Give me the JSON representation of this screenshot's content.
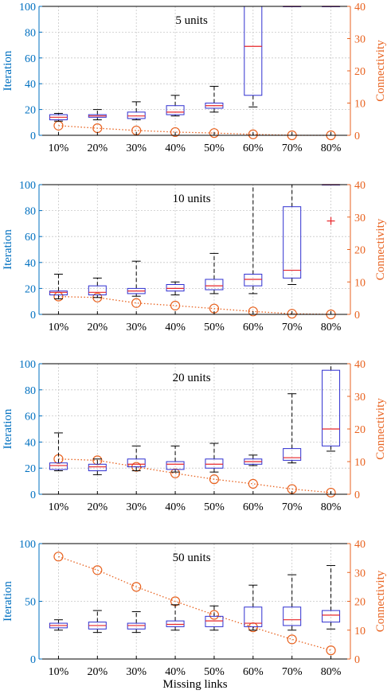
{
  "figure": {
    "xlabel": "Missing links"
  },
  "chart_data": [
    {
      "type": "box",
      "title": "5 units",
      "ylabel_left": "Iteration",
      "ylabel_right": "Connectivity",
      "categories": [
        "10%",
        "20%",
        "30%",
        "40%",
        "50%",
        "60%",
        "70%",
        "80%"
      ],
      "ylim_left": [
        0,
        100
      ],
      "yticks_left": [
        0,
        20,
        40,
        60,
        80,
        100
      ],
      "ylim_right": [
        0,
        40
      ],
      "yticks_right": [
        0,
        10,
        20,
        30,
        40
      ],
      "grid": true,
      "boxes": [
        {
          "whislo": 11,
          "q1": 12,
          "med": 14,
          "q3": 16,
          "whishi": 17
        },
        {
          "whislo": 12,
          "q1": 14,
          "med": 15,
          "q3": 16,
          "whishi": 20
        },
        {
          "whislo": 12,
          "q1": 13,
          "med": 15,
          "q3": 18,
          "whishi": 26
        },
        {
          "whislo": 15,
          "q1": 16,
          "med": 18,
          "q3": 23,
          "whishi": 31
        },
        {
          "whislo": 18,
          "q1": 21,
          "med": 23,
          "q3": 25,
          "whishi": 38
        },
        {
          "whislo": 22,
          "q1": 31,
          "med": 69,
          "q3": 100,
          "whishi": 100
        },
        {
          "whislo": 100,
          "q1": 100,
          "med": 100,
          "q3": 100,
          "whishi": 100
        },
        {
          "whislo": 100,
          "q1": 100,
          "med": 100,
          "q3": 100,
          "whishi": 100
        }
      ],
      "outliers": [],
      "connectivity": [
        3.0,
        2.2,
        1.5,
        1.0,
        0.7,
        0.3,
        0.0,
        0.0
      ]
    },
    {
      "type": "box",
      "title": "10 units",
      "ylabel_left": "Iteration",
      "ylabel_right": "Connectivity",
      "categories": [
        "10%",
        "20%",
        "30%",
        "40%",
        "50%",
        "60%",
        "70%",
        "80%"
      ],
      "ylim_left": [
        0,
        100
      ],
      "yticks_left": [
        0,
        20,
        40,
        60,
        80,
        100
      ],
      "ylim_right": [
        0,
        40
      ],
      "yticks_right": [
        0,
        10,
        20,
        30,
        40
      ],
      "grid": true,
      "boxes": [
        {
          "whislo": 12,
          "q1": 15,
          "med": 17,
          "q3": 18,
          "whishi": 31
        },
        {
          "whislo": 13,
          "q1": 15,
          "med": 17,
          "q3": 22,
          "whishi": 28
        },
        {
          "whislo": 14,
          "q1": 16,
          "med": 18,
          "q3": 20,
          "whishi": 41
        },
        {
          "whislo": 15,
          "q1": 18,
          "med": 20,
          "q3": 23,
          "whishi": 25
        },
        {
          "whislo": 16,
          "q1": 19,
          "med": 22,
          "q3": 27,
          "whishi": 47
        },
        {
          "whislo": 16,
          "q1": 22,
          "med": 27,
          "q3": 31,
          "whishi": 100
        },
        {
          "whislo": 23,
          "q1": 28,
          "med": 34,
          "q3": 83,
          "whishi": 100
        },
        {
          "whislo": 100,
          "q1": 100,
          "med": 100,
          "q3": 100,
          "whishi": 100
        }
      ],
      "outliers": [
        {
          "cat": 7,
          "value": 72
        }
      ],
      "connectivity": [
        5.5,
        5.2,
        3.5,
        2.7,
        1.8,
        0.9,
        0.2,
        0.0
      ]
    },
    {
      "type": "box",
      "title": "20 units",
      "ylabel_left": "Iteration",
      "ylabel_right": "Connectivity",
      "categories": [
        "10%",
        "20%",
        "30%",
        "40%",
        "50%",
        "60%",
        "70%",
        "80%"
      ],
      "ylim_left": [
        0,
        100
      ],
      "yticks_left": [
        0,
        20,
        40,
        60,
        80,
        100
      ],
      "ylim_right": [
        0,
        40
      ],
      "yticks_right": [
        0,
        10,
        20,
        30,
        40
      ],
      "grid": true,
      "boxes": [
        {
          "whislo": 18,
          "q1": 19,
          "med": 22,
          "q3": 24,
          "whishi": 47
        },
        {
          "whislo": 15,
          "q1": 18,
          "med": 21,
          "q3": 23,
          "whishi": 27
        },
        {
          "whislo": 18,
          "q1": 21,
          "med": 23,
          "q3": 27,
          "whishi": 37
        },
        {
          "whislo": 17,
          "q1": 19,
          "med": 23,
          "q3": 25,
          "whishi": 37
        },
        {
          "whislo": 17,
          "q1": 20,
          "med": 23,
          "q3": 27,
          "whishi": 39
        },
        {
          "whislo": 22,
          "q1": 23,
          "med": 25,
          "q3": 27,
          "whishi": 30
        },
        {
          "whislo": 24,
          "q1": 26,
          "med": 28,
          "q3": 35,
          "whishi": 77
        },
        {
          "whislo": 33,
          "q1": 37,
          "med": 50,
          "q3": 95,
          "whishi": 100
        }
      ],
      "outliers": [],
      "connectivity": [
        10.8,
        10.4,
        8.4,
        6.4,
        4.6,
        3.2,
        1.6,
        0.5
      ]
    },
    {
      "type": "box",
      "title": "50 units",
      "ylabel_left": "Iteration",
      "ylabel_right": "Connectivity",
      "categories": [
        "10%",
        "20%",
        "30%",
        "40%",
        "50%",
        "60%",
        "70%",
        "80%"
      ],
      "ylim_left": [
        0,
        100
      ],
      "yticks_left": [
        0,
        50,
        100
      ],
      "ylim_right": [
        0,
        40
      ],
      "yticks_right": [
        0,
        10,
        20,
        30,
        40
      ],
      "grid": true,
      "boxes": [
        {
          "whislo": 25,
          "q1": 27,
          "med": 29,
          "q3": 31,
          "whishi": 34
        },
        {
          "whislo": 23,
          "q1": 26,
          "med": 29,
          "q3": 32,
          "whishi": 42
        },
        {
          "whislo": 23,
          "q1": 26,
          "med": 29,
          "q3": 31,
          "whishi": 41
        },
        {
          "whislo": 25,
          "q1": 28,
          "med": 30,
          "q3": 33,
          "whishi": 47
        },
        {
          "whislo": 25,
          "q1": 28,
          "med": 33,
          "q3": 37,
          "whishi": 46
        },
        {
          "whislo": 25,
          "q1": 28,
          "med": 31,
          "q3": 45,
          "whishi": 64
        },
        {
          "whislo": 25,
          "q1": 29,
          "med": 34,
          "q3": 45,
          "whishi": 73
        },
        {
          "whislo": 26,
          "q1": 32,
          "med": 38,
          "q3": 42,
          "whishi": 81
        }
      ],
      "outliers": [],
      "connectivity": [
        35.5,
        30.8,
        25.0,
        20.0,
        15.3,
        11.0,
        6.8,
        3.0
      ]
    }
  ]
}
